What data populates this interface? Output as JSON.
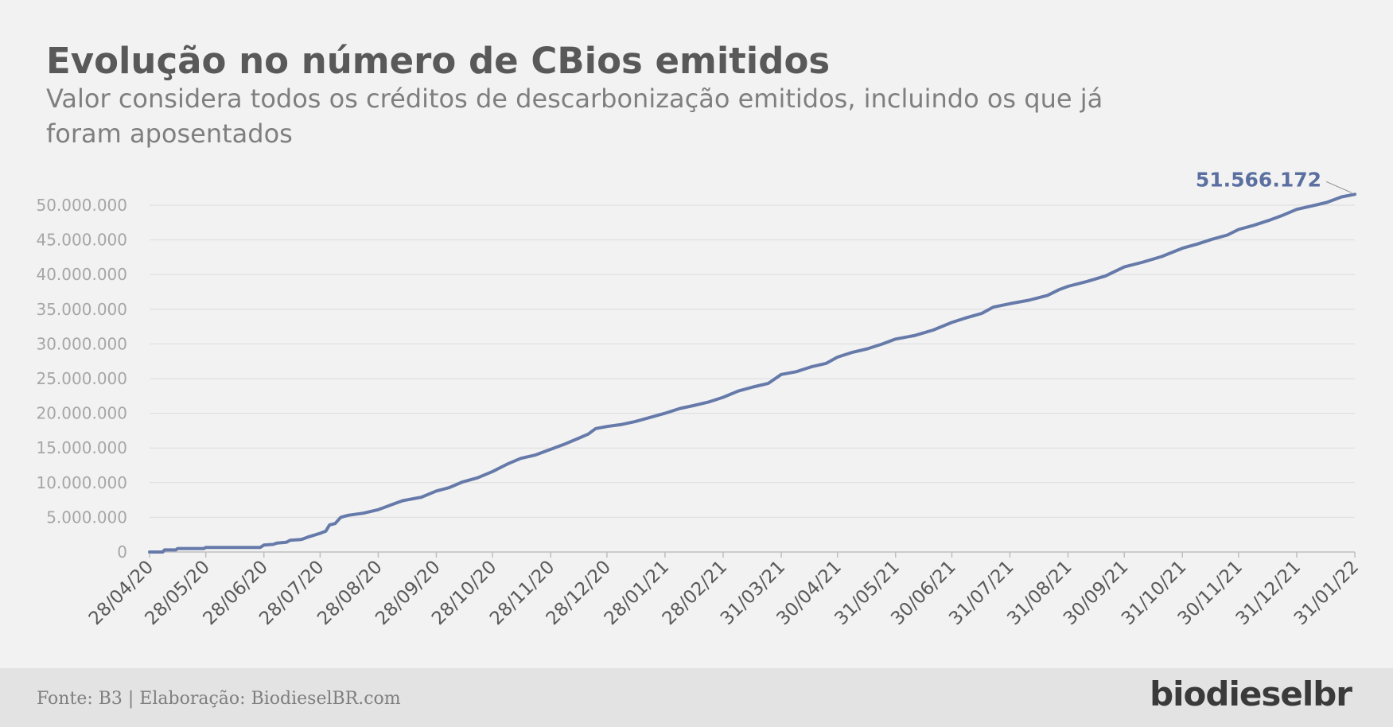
{
  "header": {
    "title": "Evolução no número de CBios emitidos",
    "subtitle": "Valor considera todos os créditos de descarbonização emitidos, incluindo os que já foram aposentados"
  },
  "footer": {
    "source": "Fonte: B3 | Elaboração: BiodieselBR.com",
    "logo": "biodieselbr"
  },
  "colors": {
    "line": "#667aaa",
    "grid": "#dcdcdc",
    "tick_text": "#a6a6a6",
    "x_text": "#595959",
    "annotation": "#5b6fa0"
  },
  "chart_data": {
    "type": "line",
    "title": "",
    "xlabel": "",
    "ylabel": "",
    "ylim": [
      0,
      50000000
    ],
    "y_ticks": [
      0,
      5000000,
      10000000,
      15000000,
      20000000,
      25000000,
      30000000,
      35000000,
      40000000,
      45000000,
      50000000
    ],
    "y_tick_labels": [
      "0",
      "5.000.000",
      "10.000.000",
      "15.000.000",
      "20.000.000",
      "25.000.000",
      "30.000.000",
      "35.000.000",
      "40.000.000",
      "45.000.000",
      "50.000.000"
    ],
    "x_range": [
      "2020-04-28",
      "2022-01-31"
    ],
    "x_ticks": [
      "2020-04-28",
      "2020-05-28",
      "2020-06-28",
      "2020-07-28",
      "2020-08-28",
      "2020-09-28",
      "2020-10-28",
      "2020-11-28",
      "2020-12-28",
      "2021-01-28",
      "2021-02-28",
      "2021-03-31",
      "2021-04-30",
      "2021-05-31",
      "2021-06-30",
      "2021-07-31",
      "2021-08-31",
      "2021-09-30",
      "2021-10-31",
      "2021-11-30",
      "2021-12-31",
      "2022-01-31"
    ],
    "x_tick_labels": [
      "28/04/20",
      "28/05/20",
      "28/06/20",
      "28/07/20",
      "28/08/20",
      "28/09/20",
      "28/10/20",
      "28/11/20",
      "28/12/20",
      "28/01/21",
      "28/02/21",
      "31/03/21",
      "30/04/21",
      "31/05/21",
      "30/06/21",
      "31/07/21",
      "31/08/21",
      "30/09/21",
      "31/10/21",
      "30/11/21",
      "31/12/21",
      "31/01/22"
    ],
    "grid": true,
    "series": [
      {
        "name": "",
        "points": [
          [
            "2020-04-28",
            0
          ],
          [
            "2020-05-05",
            0
          ],
          [
            "2020-05-06",
            300000
          ],
          [
            "2020-05-12",
            300000
          ],
          [
            "2020-05-13",
            500000
          ],
          [
            "2020-05-27",
            500000
          ],
          [
            "2020-05-28",
            650000
          ],
          [
            "2020-06-26",
            650000
          ],
          [
            "2020-06-28",
            1000000
          ],
          [
            "2020-07-03",
            1100000
          ],
          [
            "2020-07-05",
            1300000
          ],
          [
            "2020-07-10",
            1400000
          ],
          [
            "2020-07-12",
            1700000
          ],
          [
            "2020-07-18",
            1800000
          ],
          [
            "2020-07-22",
            2200000
          ],
          [
            "2020-07-28",
            2700000
          ],
          [
            "2020-07-31",
            3000000
          ],
          [
            "2020-08-02",
            3900000
          ],
          [
            "2020-08-05",
            4100000
          ],
          [
            "2020-08-08",
            5000000
          ],
          [
            "2020-08-12",
            5300000
          ],
          [
            "2020-08-20",
            5600000
          ],
          [
            "2020-08-28",
            6100000
          ],
          [
            "2020-09-05",
            6900000
          ],
          [
            "2020-09-10",
            7400000
          ],
          [
            "2020-09-20",
            7900000
          ],
          [
            "2020-09-28",
            8800000
          ],
          [
            "2020-10-05",
            9300000
          ],
          [
            "2020-10-12",
            10100000
          ],
          [
            "2020-10-20",
            10700000
          ],
          [
            "2020-10-28",
            11600000
          ],
          [
            "2020-11-05",
            12700000
          ],
          [
            "2020-11-12",
            13500000
          ],
          [
            "2020-11-20",
            14000000
          ],
          [
            "2020-11-28",
            14800000
          ],
          [
            "2020-12-05",
            15500000
          ],
          [
            "2020-12-12",
            16300000
          ],
          [
            "2020-12-18",
            17000000
          ],
          [
            "2020-12-22",
            17800000
          ],
          [
            "2020-12-28",
            18100000
          ],
          [
            "2021-01-05",
            18400000
          ],
          [
            "2021-01-12",
            18800000
          ],
          [
            "2021-01-20",
            19400000
          ],
          [
            "2021-01-28",
            20000000
          ],
          [
            "2021-02-05",
            20700000
          ],
          [
            "2021-02-12",
            21100000
          ],
          [
            "2021-02-20",
            21600000
          ],
          [
            "2021-02-28",
            22300000
          ],
          [
            "2021-03-08",
            23200000
          ],
          [
            "2021-03-16",
            23800000
          ],
          [
            "2021-03-24",
            24300000
          ],
          [
            "2021-03-31",
            25600000
          ],
          [
            "2021-04-08",
            26000000
          ],
          [
            "2021-04-16",
            26700000
          ],
          [
            "2021-04-24",
            27200000
          ],
          [
            "2021-04-30",
            28100000
          ],
          [
            "2021-05-08",
            28800000
          ],
          [
            "2021-05-16",
            29300000
          ],
          [
            "2021-05-24",
            30000000
          ],
          [
            "2021-05-31",
            30700000
          ],
          [
            "2021-06-10",
            31200000
          ],
          [
            "2021-06-20",
            32000000
          ],
          [
            "2021-06-30",
            33100000
          ],
          [
            "2021-07-08",
            33800000
          ],
          [
            "2021-07-16",
            34400000
          ],
          [
            "2021-07-22",
            35300000
          ],
          [
            "2021-07-31",
            35800000
          ],
          [
            "2021-08-10",
            36300000
          ],
          [
            "2021-08-20",
            37000000
          ],
          [
            "2021-08-26",
            37800000
          ],
          [
            "2021-08-31",
            38300000
          ],
          [
            "2021-09-10",
            39000000
          ],
          [
            "2021-09-20",
            39800000
          ],
          [
            "2021-09-30",
            41100000
          ],
          [
            "2021-10-10",
            41800000
          ],
          [
            "2021-10-20",
            42600000
          ],
          [
            "2021-10-31",
            43800000
          ],
          [
            "2021-11-08",
            44400000
          ],
          [
            "2021-11-16",
            45100000
          ],
          [
            "2021-11-24",
            45700000
          ],
          [
            "2021-11-30",
            46500000
          ],
          [
            "2021-12-08",
            47100000
          ],
          [
            "2021-12-16",
            47800000
          ],
          [
            "2021-12-24",
            48600000
          ],
          [
            "2021-12-31",
            49400000
          ],
          [
            "2022-01-08",
            49900000
          ],
          [
            "2022-01-16",
            50400000
          ],
          [
            "2022-01-24",
            51200000
          ],
          [
            "2022-01-31",
            51566172
          ]
        ]
      }
    ],
    "annotations": [
      {
        "x": "2022-01-31",
        "y": 51566172,
        "label": "51.566.172"
      }
    ]
  }
}
